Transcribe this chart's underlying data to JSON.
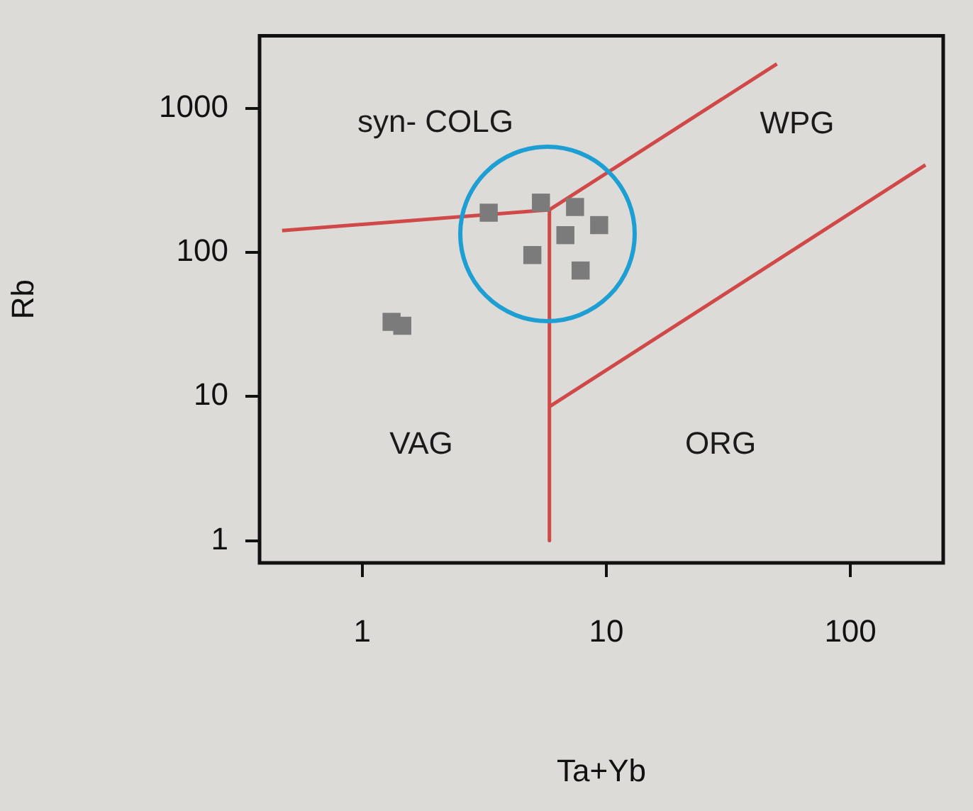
{
  "chart_data": {
    "type": "scatter",
    "xlabel": "Ta+Yb",
    "ylabel": "Rb",
    "log": "xy",
    "grid": false,
    "legend": false,
    "xlim": [
      0.38,
      240
    ],
    "ylim": [
      0.73,
      3200
    ],
    "xticks": [
      1,
      10,
      100
    ],
    "yticks": [
      1,
      10,
      100,
      1000
    ],
    "annotations": [
      "syn- COLG",
      "WPG",
      "VAG",
      "ORG"
    ],
    "series": [
      {
        "type": "scatter",
        "color": "#7b7b7b",
        "marker": "square",
        "x": [
          3.3,
          5.4,
          7.45,
          9.35,
          4.98,
          6.8,
          7.85,
          1.32,
          1.46
        ],
        "values": [
          189,
          222,
          207,
          155,
          96,
          132,
          75,
          33,
          31
        ]
      },
      {
        "type": "line",
        "color": "#d04848",
        "marker": "none",
        "x": [
          0.47,
          5.85
        ],
        "values": [
          142,
          198
        ]
      },
      {
        "type": "line",
        "color": "#d04848",
        "marker": "none",
        "x": [
          5.85,
          50
        ],
        "values": [
          198,
          2040
        ]
      },
      {
        "type": "line",
        "color": "#d04848",
        "marker": "none",
        "x": [
          5.85,
          5.85
        ],
        "values": [
          198,
          1
        ]
      },
      {
        "type": "line",
        "color": "#d04848",
        "marker": "none",
        "x": [
          5.85,
          203
        ],
        "values": [
          8.5,
          406
        ]
      }
    ]
  }
}
